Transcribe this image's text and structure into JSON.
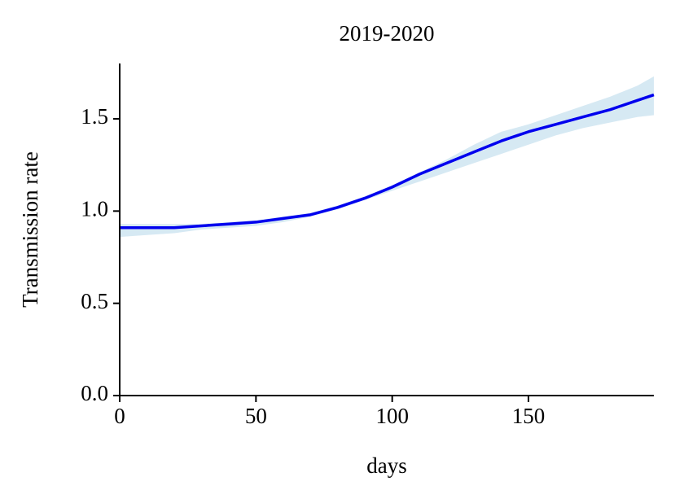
{
  "chart_data": {
    "type": "line",
    "title": "2019-2020",
    "xlabel": "days",
    "ylabel": "Transmission rate",
    "x": [
      0,
      10,
      20,
      30,
      40,
      50,
      60,
      70,
      80,
      90,
      100,
      110,
      120,
      130,
      140,
      150,
      160,
      170,
      180,
      190,
      196
    ],
    "series": [
      {
        "color": "#0000ee",
        "values": [
          0.91,
          0.91,
          0.91,
          0.92,
          0.93,
          0.94,
          0.96,
          0.98,
          1.02,
          1.07,
          1.13,
          1.2,
          1.26,
          1.32,
          1.38,
          1.43,
          1.47,
          1.51,
          1.55,
          1.6,
          1.63
        ]
      }
    ],
    "band": {
      "color": "#d6e9f3",
      "lower": [
        0.86,
        0.87,
        0.88,
        0.9,
        0.91,
        0.92,
        0.94,
        0.97,
        1.01,
        1.06,
        1.11,
        1.16,
        1.21,
        1.26,
        1.31,
        1.36,
        1.41,
        1.45,
        1.48,
        1.51,
        1.52
      ],
      "upper": [
        0.93,
        0.93,
        0.93,
        0.93,
        0.94,
        0.95,
        0.97,
        0.99,
        1.03,
        1.08,
        1.14,
        1.21,
        1.28,
        1.36,
        1.43,
        1.47,
        1.52,
        1.57,
        1.62,
        1.68,
        1.73
      ]
    },
    "xlim": [
      0,
      196
    ],
    "ylim": [
      0,
      1.8
    ],
    "xticks": [
      0,
      50,
      100,
      150
    ],
    "yticks": [
      {
        "value": 0,
        "label": "0.0"
      },
      0.5,
      {
        "value": 1,
        "label": "1.0"
      },
      1.5
    ]
  }
}
